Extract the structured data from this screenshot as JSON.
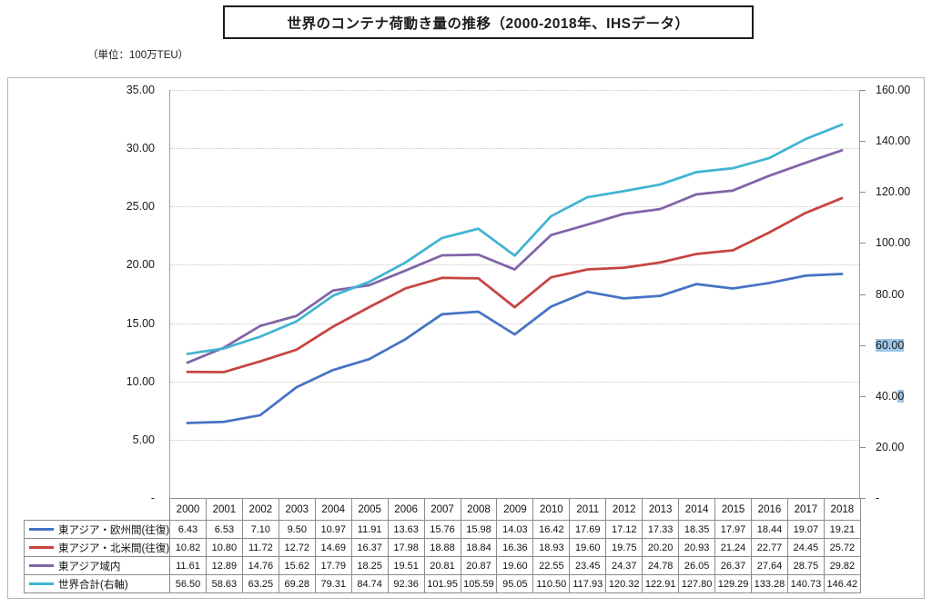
{
  "chart_data": {
    "type": "line",
    "title": "世界のコンテナ荷動き量の推移（2000-2018年、IHSデータ）",
    "unit_note": "（単位：100万TEU）",
    "x": [
      "2000",
      "2001",
      "2002",
      "2003",
      "2004",
      "2005",
      "2006",
      "2007",
      "2008",
      "2009",
      "2010",
      "2011",
      "2012",
      "2013",
      "2014",
      "2015",
      "2016",
      "2017",
      "2018"
    ],
    "series": [
      {
        "name": "東アジア・欧州間(往復)",
        "axis": "left",
        "color": "#4673C3",
        "values": [
          6.43,
          6.53,
          7.1,
          9.5,
          10.97,
          11.91,
          13.63,
          15.76,
          15.98,
          14.03,
          16.42,
          17.69,
          17.12,
          17.33,
          18.35,
          17.97,
          18.44,
          19.07,
          19.21
        ]
      },
      {
        "name": "東アジア・北米間(往復)",
        "axis": "left",
        "color": "#C64540",
        "values": [
          10.82,
          10.8,
          11.72,
          12.72,
          14.69,
          16.37,
          17.98,
          18.88,
          18.84,
          16.36,
          18.93,
          19.6,
          19.75,
          20.2,
          20.93,
          21.24,
          22.77,
          24.45,
          25.72
        ]
      },
      {
        "name": "東アジア域内",
        "axis": "left",
        "color": "#8264A8",
        "values": [
          11.61,
          12.89,
          14.76,
          15.62,
          17.79,
          18.25,
          19.51,
          20.81,
          20.87,
          19.6,
          22.55,
          23.45,
          24.37,
          24.78,
          26.05,
          26.37,
          27.64,
          28.75,
          29.82
        ]
      },
      {
        "name": "世界合計(右軸)",
        "axis": "right",
        "color": "#41B4D2",
        "values": [
          56.5,
          58.63,
          63.25,
          69.28,
          79.31,
          84.74,
          92.36,
          101.95,
          105.59,
          95.05,
          110.5,
          117.93,
          120.32,
          122.91,
          127.8,
          129.29,
          133.28,
          140.73,
          146.42
        ]
      }
    ],
    "left_axis": {
      "min": 0,
      "max": 35,
      "tick_labels": [
        "35.00",
        "30.00",
        "25.00",
        "20.00",
        "15.00",
        "10.00",
        "5.00",
        "-"
      ]
    },
    "right_axis": {
      "min": 0,
      "max": 160,
      "tick_labels": [
        "160.00",
        "140.00",
        "120.00",
        "100.00",
        "80.00",
        "60.00",
        "40.00",
        "20.00",
        "-"
      ],
      "selection_highlight": {
        "full": "60.00",
        "partial_last_char": "40.00",
        "color": "#9fc5e8"
      }
    },
    "grid": "horizontal-dotted",
    "legend_position": "table-left",
    "value_decimals": 2
  }
}
